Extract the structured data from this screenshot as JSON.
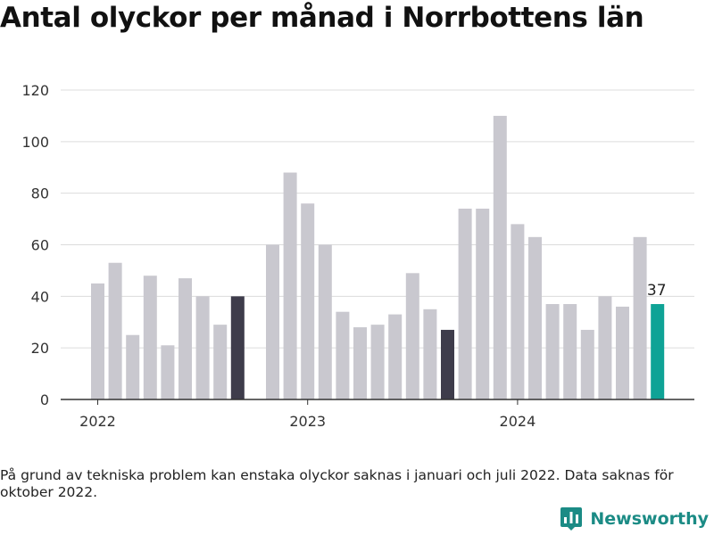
{
  "title": "Antal olyckor per månad i Norrbottens län",
  "note": "På grund av tekniska problem kan enstaka olyckor saknas i januari och juli 2022. Data saknas för oktober 2022.",
  "brand": {
    "name": "Newsworthy",
    "color": "#1b8b85"
  },
  "chart_data": {
    "type": "bar",
    "title": "Antal olyckor per månad i Norrbottens län",
    "ylim": [
      0,
      120
    ],
    "yticks": [
      0,
      20,
      40,
      60,
      80,
      100,
      120
    ],
    "grid": true,
    "xticks": [
      "2022",
      "2023",
      "2024"
    ],
    "colors": {
      "default": "#c9c8cf",
      "highlight": "#3e3c4b",
      "latest": "#0fa396"
    },
    "bars": [
      {
        "period": "2022-01",
        "value": 45,
        "style": "default"
      },
      {
        "period": "2022-02",
        "value": 53,
        "style": "default"
      },
      {
        "period": "2022-03",
        "value": 25,
        "style": "default"
      },
      {
        "period": "2022-04",
        "value": 48,
        "style": "default"
      },
      {
        "period": "2022-05",
        "value": 21,
        "style": "default"
      },
      {
        "period": "2022-06",
        "value": 47,
        "style": "default"
      },
      {
        "period": "2022-07",
        "value": 40,
        "style": "default"
      },
      {
        "period": "2022-08",
        "value": 29,
        "style": "default"
      },
      {
        "period": "2022-09",
        "value": 40,
        "style": "highlight"
      },
      {
        "period": "2022-10",
        "value": null,
        "style": "default"
      },
      {
        "period": "2022-11",
        "value": 60,
        "style": "default"
      },
      {
        "period": "2022-12",
        "value": 88,
        "style": "default"
      },
      {
        "period": "2023-01",
        "value": 76,
        "style": "default"
      },
      {
        "period": "2023-02",
        "value": 60,
        "style": "default"
      },
      {
        "period": "2023-03",
        "value": 34,
        "style": "default"
      },
      {
        "period": "2023-04",
        "value": 28,
        "style": "default"
      },
      {
        "period": "2023-05",
        "value": 29,
        "style": "default"
      },
      {
        "period": "2023-06",
        "value": 33,
        "style": "default"
      },
      {
        "period": "2023-07",
        "value": 49,
        "style": "default"
      },
      {
        "period": "2023-08",
        "value": 35,
        "style": "default"
      },
      {
        "period": "2023-09",
        "value": 27,
        "style": "highlight"
      },
      {
        "period": "2023-10",
        "value": 74,
        "style": "default"
      },
      {
        "period": "2023-11",
        "value": 74,
        "style": "default"
      },
      {
        "period": "2023-12",
        "value": 110,
        "style": "default"
      },
      {
        "period": "2024-01",
        "value": 68,
        "style": "default"
      },
      {
        "period": "2024-02",
        "value": 63,
        "style": "default"
      },
      {
        "period": "2024-03",
        "value": 37,
        "style": "default"
      },
      {
        "period": "2024-04",
        "value": 37,
        "style": "default"
      },
      {
        "period": "2024-05",
        "value": 27,
        "style": "default"
      },
      {
        "period": "2024-06",
        "value": 40,
        "style": "default"
      },
      {
        "period": "2024-07",
        "value": 36,
        "style": "default"
      },
      {
        "period": "2024-08",
        "value": 63,
        "style": "default"
      },
      {
        "period": "2024-09",
        "value": 37,
        "style": "latest",
        "label": "37"
      }
    ]
  }
}
